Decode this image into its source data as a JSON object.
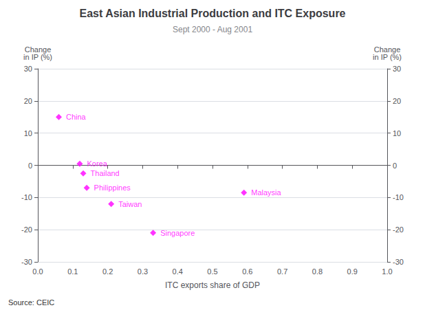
{
  "chart_data": {
    "type": "scatter",
    "title": "East Asian Industrial Production and ITC Exposure",
    "subtitle": "Sept 2000 - Aug 2001",
    "xlabel": "ITC exports share of GDP",
    "ylabel": "Change\nin IP (%)",
    "y2label": "Change\nin IP (%)",
    "annotations": [
      "Source: CEIC"
    ],
    "x": [
      0.06,
      0.12,
      0.13,
      0.14,
      0.21,
      0.33,
      0.59
    ],
    "values": [
      15,
      0.5,
      -2.5,
      -7,
      -12,
      -21,
      -8.5
    ],
    "labels": [
      "China",
      "Korea",
      "Thailand",
      "Philippines",
      "Taiwan",
      "Singapore",
      "Malaysia"
    ],
    "color": "#FF00FF",
    "marker": "diamond",
    "xlim": [
      0.0,
      1.0
    ],
    "xticks": [
      {
        "value": 0.0,
        "label": "0.0"
      },
      0.1,
      0.2,
      0.3,
      0.4,
      0.5,
      0.6,
      0.7,
      0.8,
      0.9,
      {
        "value": 1.0,
        "label": "1.0"
      }
    ],
    "ylim": [
      -30,
      30
    ],
    "yticks": [
      -30,
      -20,
      -10,
      0,
      10,
      20,
      30
    ],
    "y2lim": [
      -30,
      30
    ],
    "y2ticks": [
      -30,
      -20,
      -10,
      0,
      10,
      20,
      30
    ],
    "grid": true
  }
}
